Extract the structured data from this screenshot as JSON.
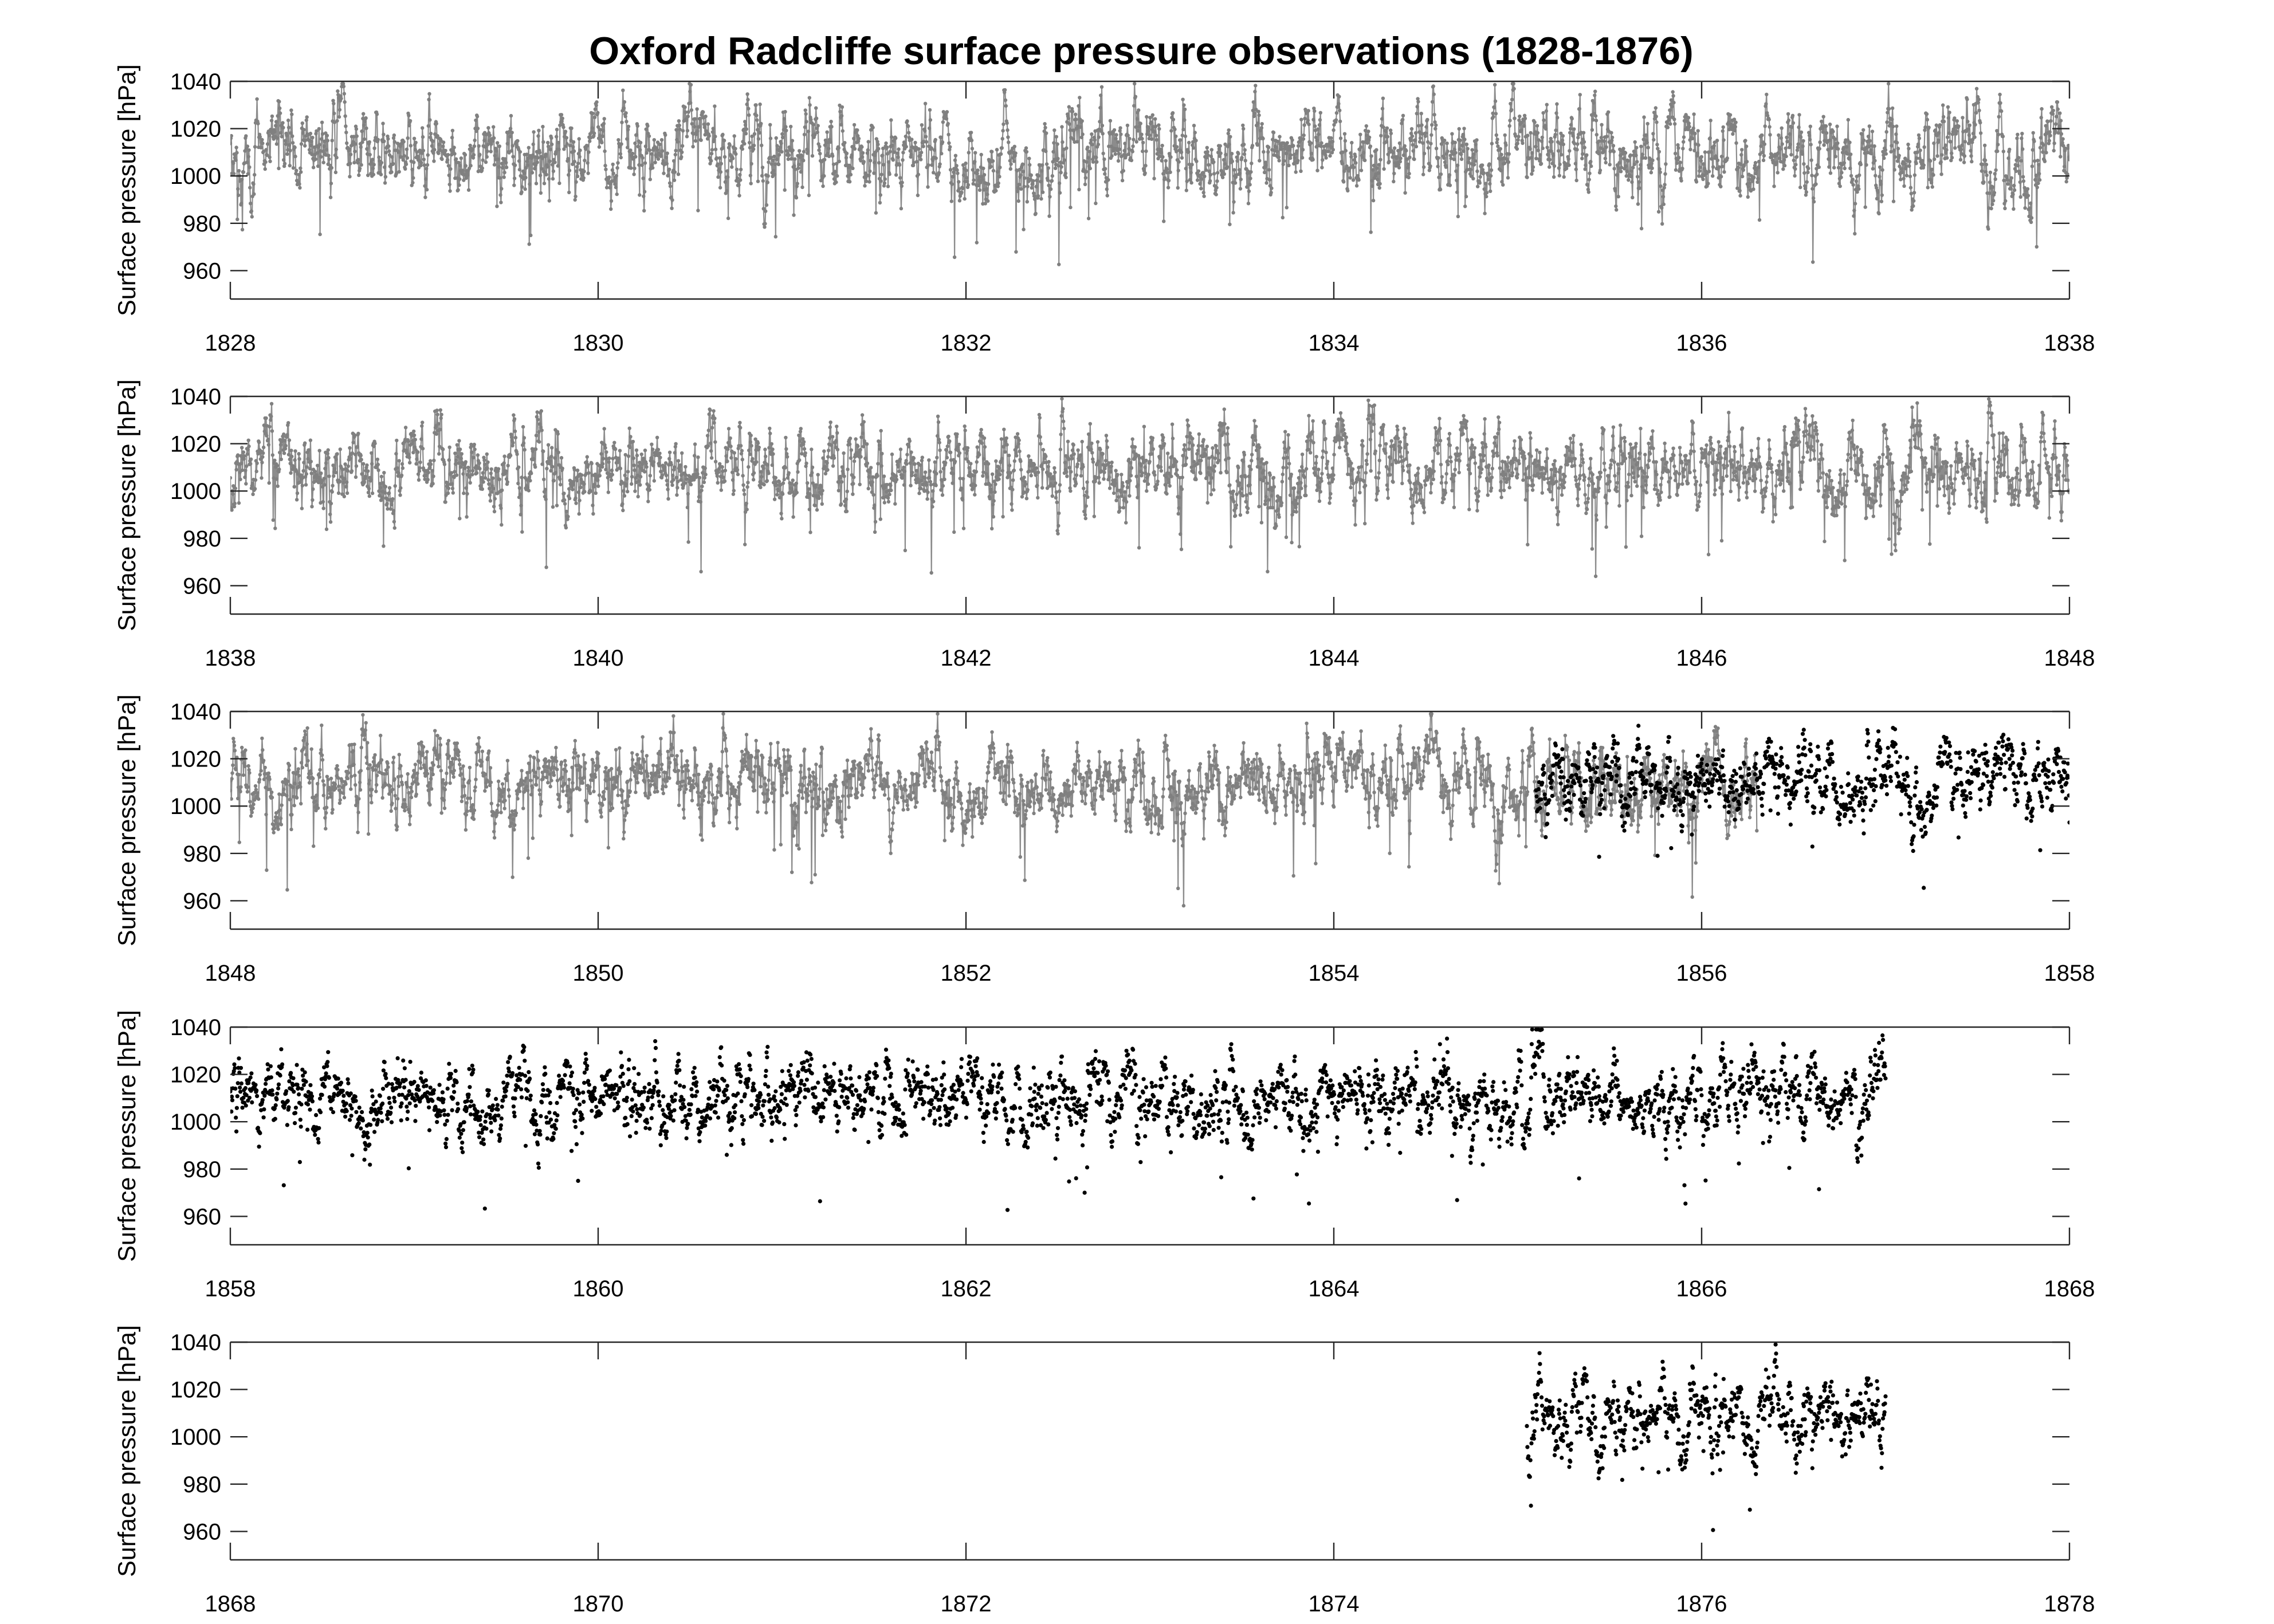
{
  "figure": {
    "title": "Oxford Radcliffe surface pressure observations (1828-1876)"
  },
  "colors": {
    "series_early": "#808080",
    "series_late": "#000000",
    "axes": "#262626",
    "text": "#000000"
  },
  "chart_data": [
    {
      "type": "line",
      "ylabel": "Surface pressure [hPa]",
      "xlim": [
        1828,
        1838
      ],
      "ylim": [
        948,
        1040
      ],
      "xticks": [
        1828,
        1830,
        1832,
        1834,
        1836,
        1838
      ],
      "yticks": [
        960,
        980,
        1000,
        1020,
        1040
      ],
      "grid": false,
      "series": [
        {
          "style": "line-with-dots",
          "color": "#808080",
          "x_range": [
            1828.0,
            1838.0
          ],
          "typical_range": [
            985,
            1025
          ],
          "extremes": [
            956,
            1038
          ]
        }
      ]
    },
    {
      "type": "line",
      "ylabel": "Surface pressure [hPa]",
      "xlim": [
        1838,
        1848
      ],
      "ylim": [
        948,
        1040
      ],
      "xticks": [
        1838,
        1840,
        1842,
        1844,
        1846,
        1848
      ],
      "yticks": [
        960,
        980,
        1000,
        1020,
        1040
      ],
      "grid": false,
      "series": [
        {
          "style": "line-with-dots",
          "color": "#808080",
          "x_range": [
            1838.0,
            1848.0
          ],
          "typical_range": [
            985,
            1025
          ],
          "extremes": [
            950,
            1035
          ]
        }
      ]
    },
    {
      "type": "line",
      "ylabel": "Surface pressure [hPa]",
      "xlim": [
        1848,
        1858
      ],
      "ylim": [
        948,
        1040
      ],
      "xticks": [
        1848,
        1850,
        1852,
        1854,
        1856,
        1858
      ],
      "yticks": [
        960,
        980,
        1000,
        1020,
        1040
      ],
      "grid": false,
      "series": [
        {
          "style": "line-with-dots",
          "color": "#808080",
          "x_range": [
            1848.0,
            1856.3
          ],
          "typical_range": [
            985,
            1025
          ],
          "extremes": [
            957,
            1040
          ]
        },
        {
          "style": "dots",
          "color": "#000000",
          "x_range": [
            1855.1,
            1858.0
          ],
          "typical_range": [
            988,
            1024
          ],
          "extremes": [
            970,
            1038
          ]
        }
      ]
    },
    {
      "type": "scatter",
      "ylabel": "Surface pressure [hPa]",
      "xlim": [
        1858,
        1868
      ],
      "ylim": [
        948,
        1040
      ],
      "xticks": [
        1858,
        1860,
        1862,
        1864,
        1866,
        1868
      ],
      "yticks": [
        960,
        980,
        1000,
        1020,
        1040
      ],
      "grid": false,
      "series": [
        {
          "style": "dots",
          "color": "#000000",
          "x_range": [
            1858.0,
            1867.0
          ],
          "typical_range": [
            988,
            1024
          ],
          "extremes": [
            958,
            1040
          ]
        }
      ]
    },
    {
      "type": "scatter",
      "ylabel": "Surface pressure [hPa]",
      "xlim": [
        1868,
        1878
      ],
      "ylim": [
        948,
        1040
      ],
      "xticks": [
        1868,
        1870,
        1872,
        1874,
        1876,
        1878
      ],
      "yticks": [
        960,
        980,
        1000,
        1020,
        1040
      ],
      "grid": false,
      "series": [
        {
          "style": "dots",
          "color": "#000000",
          "x_range": [
            1875.05,
            1877.0
          ],
          "typical_range": [
            990,
            1024
          ],
          "extremes": [
            952,
            1031
          ]
        }
      ]
    }
  ]
}
